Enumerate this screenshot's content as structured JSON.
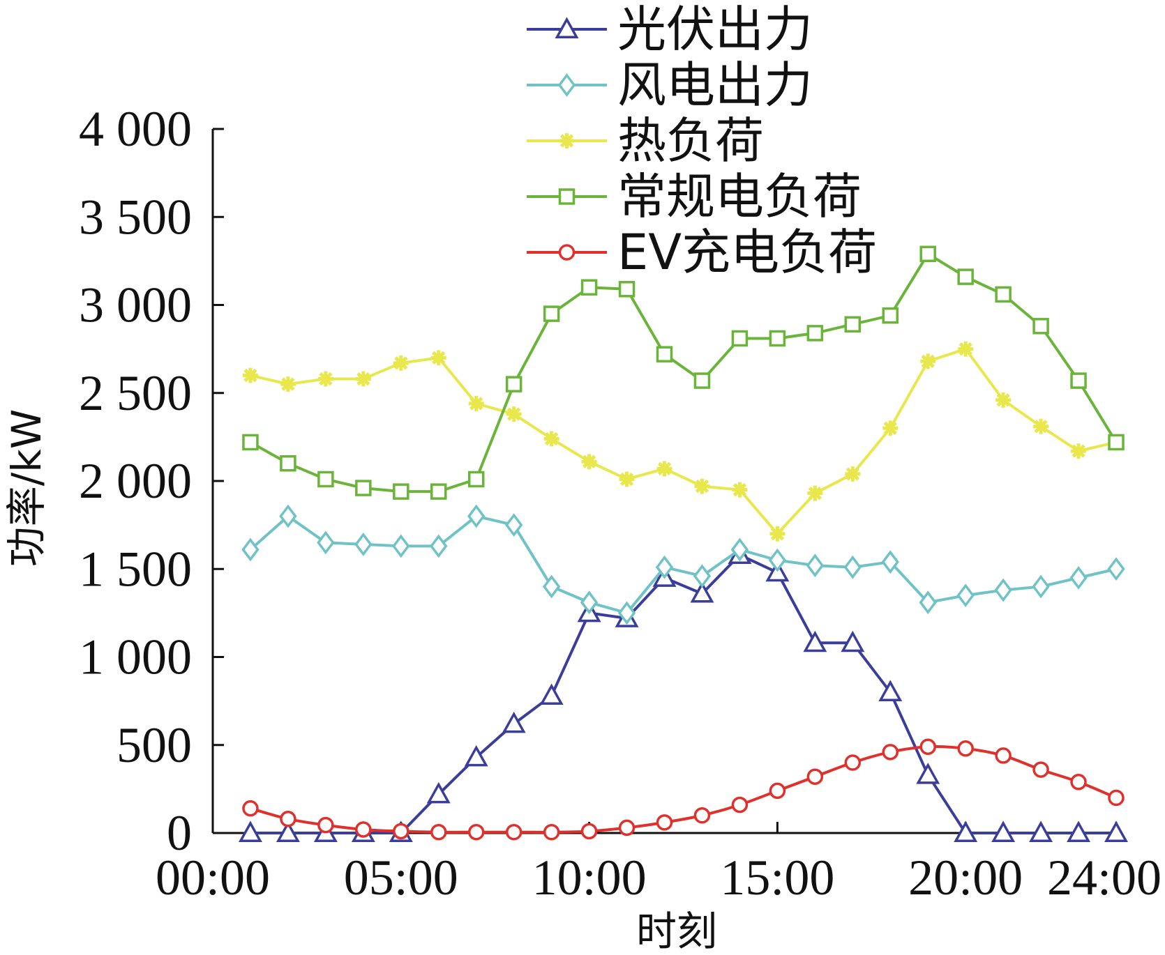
{
  "chart_data": {
    "type": "line",
    "xlabel": "时刻",
    "ylabel": "功率/kW",
    "ylim": [
      0,
      4000
    ],
    "xlim": [
      0,
      24
    ],
    "yticks": [
      0,
      500,
      1000,
      1500,
      2000,
      2500,
      3000,
      3500,
      4000
    ],
    "ytick_labels": [
      "0",
      "500",
      "1 000",
      "1 500",
      "2 000",
      "2 500",
      "3 000",
      "3 500",
      "4 000"
    ],
    "xticks": [
      0,
      5,
      10,
      15,
      20,
      24
    ],
    "xtick_labels": [
      "00:00",
      "05:00",
      "10:00",
      "15:00",
      "20:00",
      "24:00"
    ],
    "grid": false,
    "legend_position": "top-right",
    "x": [
      1,
      2,
      3,
      4,
      5,
      6,
      7,
      8,
      9,
      10,
      11,
      12,
      13,
      14,
      15,
      16,
      17,
      18,
      19,
      20,
      21,
      22,
      23,
      24
    ],
    "series": [
      {
        "name": "光伏出力",
        "color": "#3a3e9a",
        "marker": "triangle",
        "values": [
          0,
          0,
          0,
          0,
          0,
          220,
          430,
          620,
          780,
          1250,
          1220,
          1450,
          1360,
          1580,
          1480,
          1080,
          1080,
          800,
          330,
          0,
          0,
          0,
          0,
          0
        ]
      },
      {
        "name": "风电出力",
        "color": "#6fc3c6",
        "marker": "diamond",
        "values": [
          1610,
          1800,
          1650,
          1640,
          1630,
          1630,
          1800,
          1750,
          1400,
          1310,
          1250,
          1510,
          1460,
          1610,
          1550,
          1520,
          1510,
          1540,
          1310,
          1350,
          1380,
          1400,
          1450,
          1500
        ]
      },
      {
        "name": "热负荷",
        "color": "#e8e84c",
        "marker": "star",
        "values": [
          2600,
          2550,
          2580,
          2580,
          2670,
          2700,
          2440,
          2380,
          2240,
          2110,
          2010,
          2070,
          1970,
          1950,
          1700,
          1930,
          2040,
          2300,
          2680,
          2750,
          2460,
          2310,
          2170,
          2220
        ]
      },
      {
        "name": "常规电负荷",
        "color": "#6ab43a",
        "marker": "square",
        "values": [
          2220,
          2100,
          2010,
          1960,
          1940,
          1940,
          2010,
          2550,
          2950,
          3100,
          3090,
          2720,
          2570,
          2810,
          2810,
          2840,
          2890,
          2940,
          3290,
          3160,
          3060,
          2880,
          2570,
          2220
        ]
      },
      {
        "name": "EV充电负荷",
        "color": "#e0302c",
        "marker": "circle",
        "values": [
          140,
          80,
          45,
          20,
          10,
          5,
          5,
          5,
          5,
          10,
          30,
          60,
          100,
          160,
          240,
          320,
          400,
          460,
          490,
          480,
          440,
          360,
          290,
          200
        ]
      }
    ]
  }
}
